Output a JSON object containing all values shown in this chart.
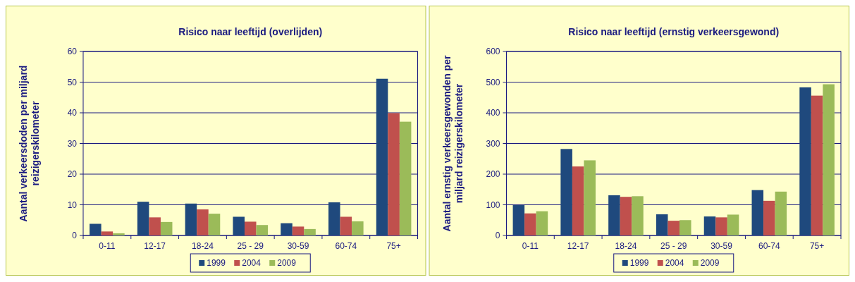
{
  "chart_data": [
    {
      "type": "bar",
      "title": "Risico naar leeftijd (overlijden)",
      "ylabel": "Aantal verkeersdoden per miljard reizigerskilometer",
      "categories": [
        "0-11",
        "12-17",
        "18-24",
        "25 - 29",
        "30-59",
        "60-74",
        "75+"
      ],
      "series": [
        {
          "name": "1999",
          "color": "#1f497d",
          "values": [
            3.8,
            11.0,
            10.4,
            6.1,
            4.0,
            10.8,
            51.1
          ]
        },
        {
          "name": "2004",
          "color": "#c0504d",
          "values": [
            1.3,
            5.9,
            8.5,
            4.5,
            2.9,
            6.1,
            39.9
          ]
        },
        {
          "name": "2009",
          "color": "#9bbb59",
          "values": [
            0.7,
            4.4,
            7.1,
            3.4,
            2.1,
            4.6,
            37.1
          ]
        }
      ],
      "ylim": [
        0,
        60
      ],
      "yticks": [
        0,
        10,
        20,
        30,
        40,
        50,
        60
      ],
      "grid": "y",
      "legend": "bottom"
    },
    {
      "type": "bar",
      "title": "Risico naar leeftijd (ernstig verkeersgewond)",
      "ylabel": "Aantal ernstig verkeersgewonden per miljard reizigerskilometer",
      "categories": [
        "0-11",
        "12-17",
        "18-24",
        "25 - 29",
        "30-59",
        "60-74",
        "75+"
      ],
      "series": [
        {
          "name": "1999",
          "color": "#1f497d",
          "values": [
            99,
            282,
            131,
            69,
            62,
            148,
            483
          ]
        },
        {
          "name": "2004",
          "color": "#c0504d",
          "values": [
            72,
            225,
            126,
            48,
            59,
            113,
            456
          ]
        },
        {
          "name": "2009",
          "color": "#9bbb59",
          "values": [
            79,
            245,
            128,
            50,
            68,
            143,
            493
          ]
        }
      ],
      "ylim": [
        0,
        600
      ],
      "yticks": [
        0,
        100,
        200,
        300,
        400,
        500,
        600
      ],
      "grid": "y",
      "legend": "bottom"
    }
  ]
}
